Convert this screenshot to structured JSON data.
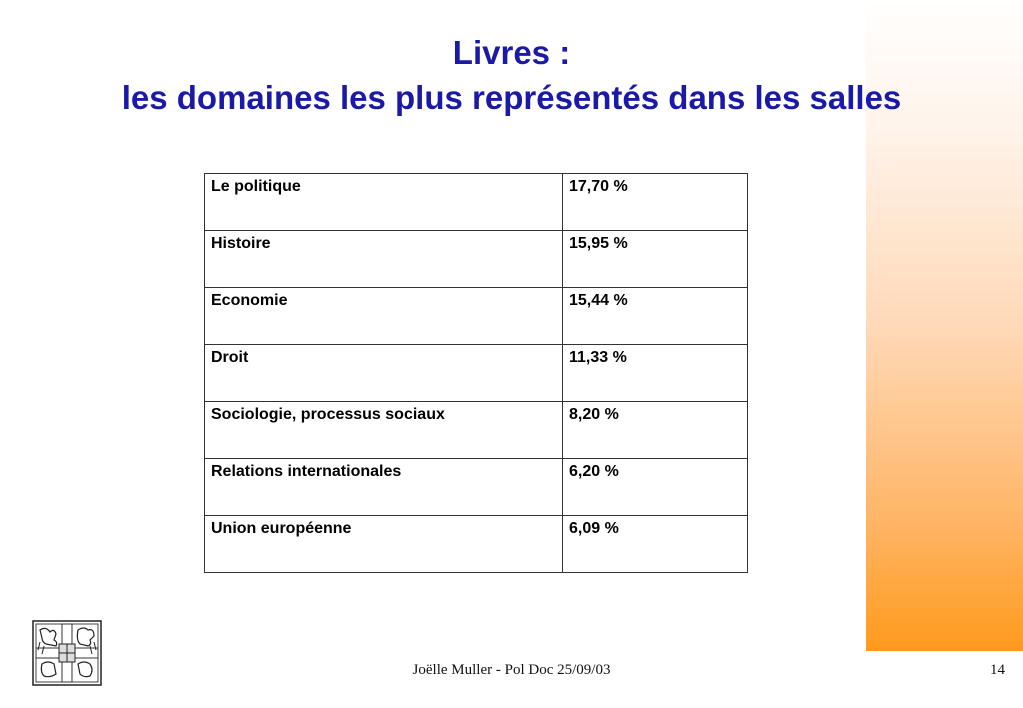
{
  "slide": {
    "title_line1": "Livres :",
    "title_line2": "les domaines les plus représentés dans les salles"
  },
  "table": {
    "rows": [
      {
        "domain": "Le politique",
        "percent": "17,70 %"
      },
      {
        "domain": "Histoire",
        "percent": "15,95 %"
      },
      {
        "domain": "Economie",
        "percent": "15,44 %"
      },
      {
        "domain": "Droit",
        "percent": "11,33 %"
      },
      {
        "domain": "Sociologie, processus sociaux",
        "percent": "8,20 %"
      },
      {
        "domain": "Relations internationales",
        "percent": "6,20 %"
      },
      {
        "domain": "Union européenne",
        "percent": "6,09 %"
      }
    ]
  },
  "footer": {
    "text": "Joëlle Muller - Pol Doc 25/09/03",
    "page_number": "14"
  },
  "logo_icon": "coat-of-arms-icon",
  "colors": {
    "title": "#1a1aa6",
    "gradient_top": "#ffffff",
    "gradient_bottom": "#ff9a1c"
  }
}
